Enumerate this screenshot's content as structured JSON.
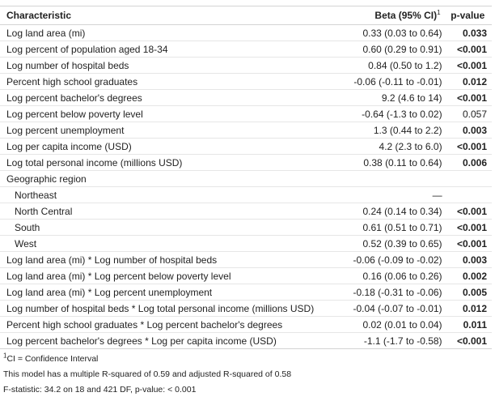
{
  "header": {
    "characteristic": "Characteristic",
    "beta": "Beta (95% CI)",
    "beta_footnote_mark": "1",
    "pvalue": "p-value"
  },
  "rows": [
    {
      "label": "Log land area (mi)",
      "beta": "0.33 (0.03 to 0.64)",
      "p": "0.033",
      "p_bold": true,
      "indent": false
    },
    {
      "label": "Log percent of population aged 18-34",
      "beta": "0.60 (0.29 to 0.91)",
      "p": "<0.001",
      "p_bold": true,
      "indent": false
    },
    {
      "label": "Log number of hospital beds",
      "beta": "0.84 (0.50 to 1.2)",
      "p": "<0.001",
      "p_bold": true,
      "indent": false
    },
    {
      "label": "Percent high school graduates",
      "beta": "-0.06 (-0.11 to -0.01)",
      "p": "0.012",
      "p_bold": true,
      "indent": false
    },
    {
      "label": "Log percent bachelor's degrees",
      "beta": "9.2 (4.6 to 14)",
      "p": "<0.001",
      "p_bold": true,
      "indent": false
    },
    {
      "label": "Log percent below poverty level",
      "beta": "-0.64 (-1.3 to 0.02)",
      "p": "0.057",
      "p_bold": false,
      "indent": false
    },
    {
      "label": "Log percent unemployment",
      "beta": "1.3 (0.44 to 2.2)",
      "p": "0.003",
      "p_bold": true,
      "indent": false
    },
    {
      "label": "Log per capita income (USD)",
      "beta": "4.2 (2.3 to 6.0)",
      "p": "<0.001",
      "p_bold": true,
      "indent": false
    },
    {
      "label": "Log total personal income (millions USD)",
      "beta": "0.38 (0.11 to 0.64)",
      "p": "0.006",
      "p_bold": true,
      "indent": false
    },
    {
      "label": "Geographic region",
      "beta": "",
      "p": "",
      "p_bold": false,
      "indent": false
    },
    {
      "label": "Northeast",
      "beta": "—",
      "p": "",
      "p_bold": false,
      "indent": true
    },
    {
      "label": "North Central",
      "beta": "0.24 (0.14 to 0.34)",
      "p": "<0.001",
      "p_bold": true,
      "indent": true
    },
    {
      "label": "South",
      "beta": "0.61 (0.51 to 0.71)",
      "p": "<0.001",
      "p_bold": true,
      "indent": true
    },
    {
      "label": "West",
      "beta": "0.52 (0.39 to 0.65)",
      "p": "<0.001",
      "p_bold": true,
      "indent": true
    },
    {
      "label": "Log land area (mi) * Log number of hospital beds",
      "beta": "-0.06 (-0.09 to -0.02)",
      "p": "0.003",
      "p_bold": true,
      "indent": false
    },
    {
      "label": "Log land area (mi) * Log percent below poverty level",
      "beta": "0.16 (0.06 to 0.26)",
      "p": "0.002",
      "p_bold": true,
      "indent": false
    },
    {
      "label": "Log land area (mi) * Log percent unemployment",
      "beta": "-0.18 (-0.31 to -0.06)",
      "p": "0.005",
      "p_bold": true,
      "indent": false
    },
    {
      "label": "Log number of hospital beds * Log total personal income (millions USD)",
      "beta": "-0.04 (-0.07 to -0.01)",
      "p": "0.012",
      "p_bold": true,
      "indent": false
    },
    {
      "label": "Percent high school graduates * Log percent bachelor's degrees",
      "beta": "0.02 (0.01 to 0.04)",
      "p": "0.011",
      "p_bold": true,
      "indent": false
    },
    {
      "label": "Log percent bachelor's degrees * Log per capita income (USD)",
      "beta": "-1.1 (-1.7 to -0.58)",
      "p": "<0.001",
      "p_bold": true,
      "indent": false
    }
  ],
  "footnotes": {
    "ci_mark": "1",
    "ci_text": "CI = Confidence Interval",
    "r_squared": "This model has a multiple R-squared of 0.59 and adjusted R-squared of 0.58",
    "f_stat": "F-statistic: 34.2 on 18 and 421 DF, p-value: < 0.001"
  }
}
